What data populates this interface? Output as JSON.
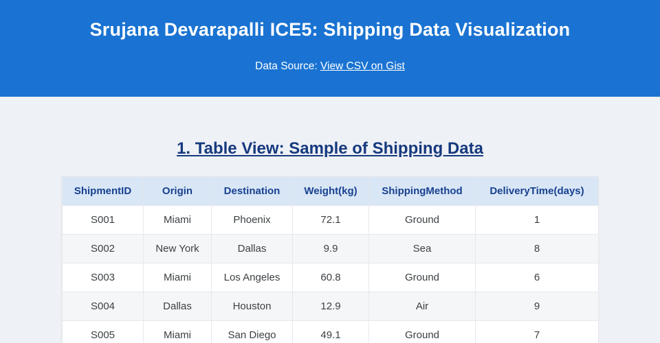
{
  "header": {
    "title": "Srujana Devarapalli ICE5: Shipping Data Visualization",
    "data_source_prefix": "Data Source: ",
    "link_label": "View CSV on Gist",
    "background_color": "#1a73d2",
    "text_color": "#ffffff"
  },
  "section": {
    "title": "1. Table View: Sample of Shipping Data",
    "title_color": "#16397e"
  },
  "table": {
    "columns": [
      "ShipmentID",
      "Origin",
      "Destination",
      "Weight(kg)",
      "ShippingMethod",
      "DeliveryTime(days)"
    ],
    "rows": [
      [
        "S001",
        "Miami",
        "Phoenix",
        "72.1",
        "Ground",
        "1"
      ],
      [
        "S002",
        "New York",
        "Dallas",
        "9.9",
        "Sea",
        "8"
      ],
      [
        "S003",
        "Miami",
        "Los Angeles",
        "60.8",
        "Ground",
        "6"
      ],
      [
        "S004",
        "Dallas",
        "Houston",
        "12.9",
        "Air",
        "9"
      ],
      [
        "S005",
        "Miami",
        "San Diego",
        "49.1",
        "Ground",
        "7"
      ]
    ],
    "header_bg_color": "#d9e6f6",
    "header_text_color": "#17418f"
  }
}
